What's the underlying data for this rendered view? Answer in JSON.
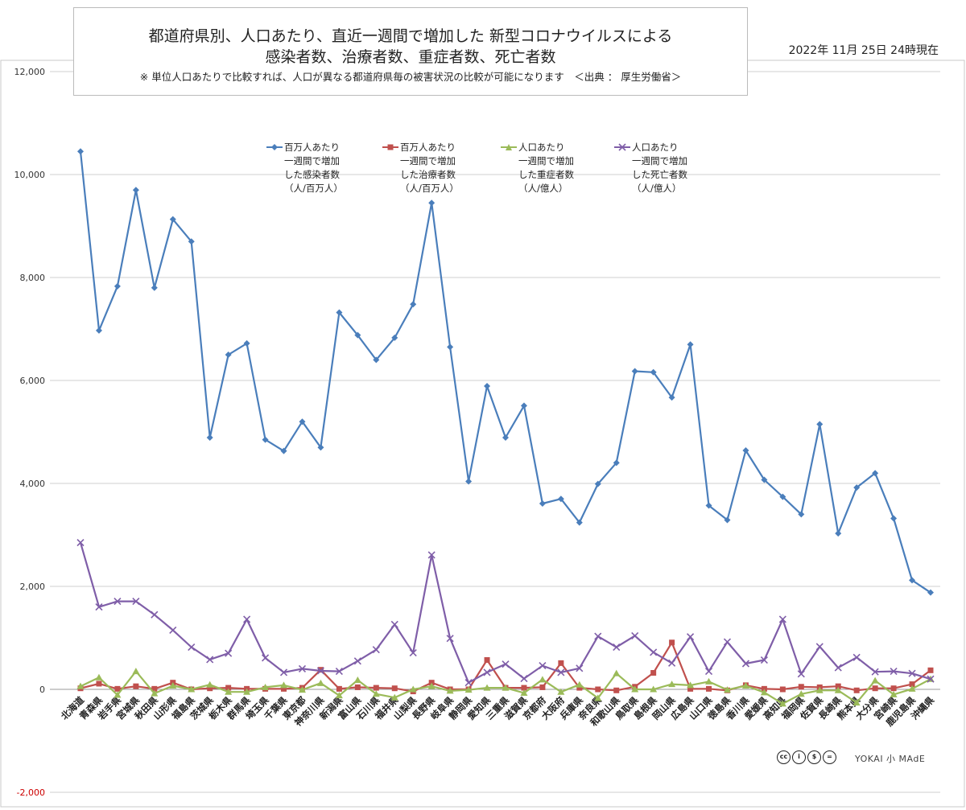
{
  "header": {
    "title_line1": "都道府県別、人口あたり、直近一週間で増加した 新型コロナウイルスによる",
    "title_line2": "感染者数、治療者数、重症者数、死亡者数",
    "note": "※ 単位人口あたりで比較すれば、人口が異なる都道府県毎の被害状況の比較が可能になります　＜出典 ： 厚生労働省＞",
    "date": "2022年 11月 25日 24時現在"
  },
  "credits": {
    "license_icons": [
      "cc-icon",
      "by-icon",
      "nc-icon",
      "nd-icon"
    ],
    "brand": "YOKAI 小 MAdE"
  },
  "chart_data": {
    "type": "line",
    "ylim": [
      -2000,
      12000
    ],
    "yticks": [
      -2000,
      0,
      2000,
      4000,
      6000,
      8000,
      10000,
      12000
    ],
    "ytick_labels": [
      "-2,000",
      "0",
      "2,000",
      "4,000",
      "6,000",
      "8,000",
      "10,000",
      "12,000"
    ],
    "grid": true,
    "legend_position": "top-center",
    "categories": [
      "北海道",
      "青森県",
      "岩手県",
      "宮城県",
      "秋田県",
      "山形県",
      "福島県",
      "茨城県",
      "栃木県",
      "群馬県",
      "埼玉県",
      "千葉県",
      "東京都",
      "神奈川県",
      "新潟県",
      "富山県",
      "石川県",
      "福井県",
      "山梨県",
      "長野県",
      "岐阜県",
      "静岡県",
      "愛知県",
      "三重県",
      "滋賀県",
      "京都府",
      "大阪府",
      "兵庫県",
      "奈良県",
      "和歌山県",
      "鳥取県",
      "島根県",
      "岡山県",
      "広島県",
      "山口県",
      "徳島県",
      "香川県",
      "愛媛県",
      "高知県",
      "福岡県",
      "佐賀県",
      "長崎県",
      "熊本県",
      "大分県",
      "宮崎県",
      "鹿児島県",
      "沖縄県"
    ],
    "series": [
      {
        "name": "百万人あたり\n一週間で増加\nした感染者数\n（人/百万人）",
        "color": "#4a7ebb",
        "marker": "diamond",
        "values": [
          10450,
          6970,
          7830,
          9700,
          7800,
          9130,
          8700,
          4890,
          6500,
          6720,
          4850,
          4630,
          5200,
          4700,
          7320,
          6880,
          6400,
          6830,
          7480,
          9450,
          6650,
          4040,
          5890,
          4890,
          5510,
          3610,
          3700,
          3240,
          3990,
          4400,
          6180,
          6160,
          5670,
          6700,
          3570,
          3290,
          4640,
          4070,
          3740,
          3400,
          5150,
          3030,
          3920,
          4200,
          3320,
          2120,
          1880
        ]
      },
      {
        "name": "百万人あたり\n一週間で増加\nした治療者数\n（人/百万人）",
        "color": "#c0504d",
        "marker": "square",
        "values": [
          20,
          110,
          10,
          60,
          10,
          130,
          0,
          20,
          30,
          10,
          10,
          10,
          30,
          380,
          10,
          40,
          30,
          20,
          -40,
          130,
          0,
          0,
          570,
          30,
          30,
          40,
          510,
          30,
          0,
          -20,
          50,
          320,
          910,
          10,
          10,
          -20,
          80,
          10,
          0,
          50,
          40,
          60,
          -20,
          20,
          20,
          100,
          370
        ]
      },
      {
        "name": "人口あたり\n一週間で増加\nした重症者数\n（人/億人）",
        "color": "#9bbb59",
        "marker": "triangle",
        "values": [
          60,
          230,
          -110,
          350,
          -80,
          70,
          0,
          90,
          -50,
          -50,
          40,
          80,
          -10,
          120,
          -120,
          180,
          -90,
          -160,
          0,
          60,
          -30,
          -10,
          30,
          30,
          -70,
          190,
          -50,
          90,
          -170,
          310,
          0,
          0,
          100,
          80,
          150,
          -10,
          70,
          -60,
          -280,
          -90,
          -20,
          -20,
          -260,
          170,
          -100,
          10,
          200
        ]
      },
      {
        "name": "人口あたり\n一週間で増加\nした死亡者数\n（人/億人）",
        "color": "#7f5ea8",
        "marker": "x",
        "values": [
          2850,
          1600,
          1710,
          1710,
          1450,
          1150,
          820,
          580,
          700,
          1360,
          610,
          330,
          400,
          360,
          350,
          550,
          770,
          1260,
          710,
          2610,
          990,
          130,
          330,
          490,
          210,
          460,
          330,
          410,
          1030,
          820,
          1040,
          720,
          510,
          1020,
          350,
          920,
          500,
          570,
          1360,
          300,
          830,
          420,
          620,
          340,
          350,
          310,
          200
        ]
      }
    ]
  }
}
